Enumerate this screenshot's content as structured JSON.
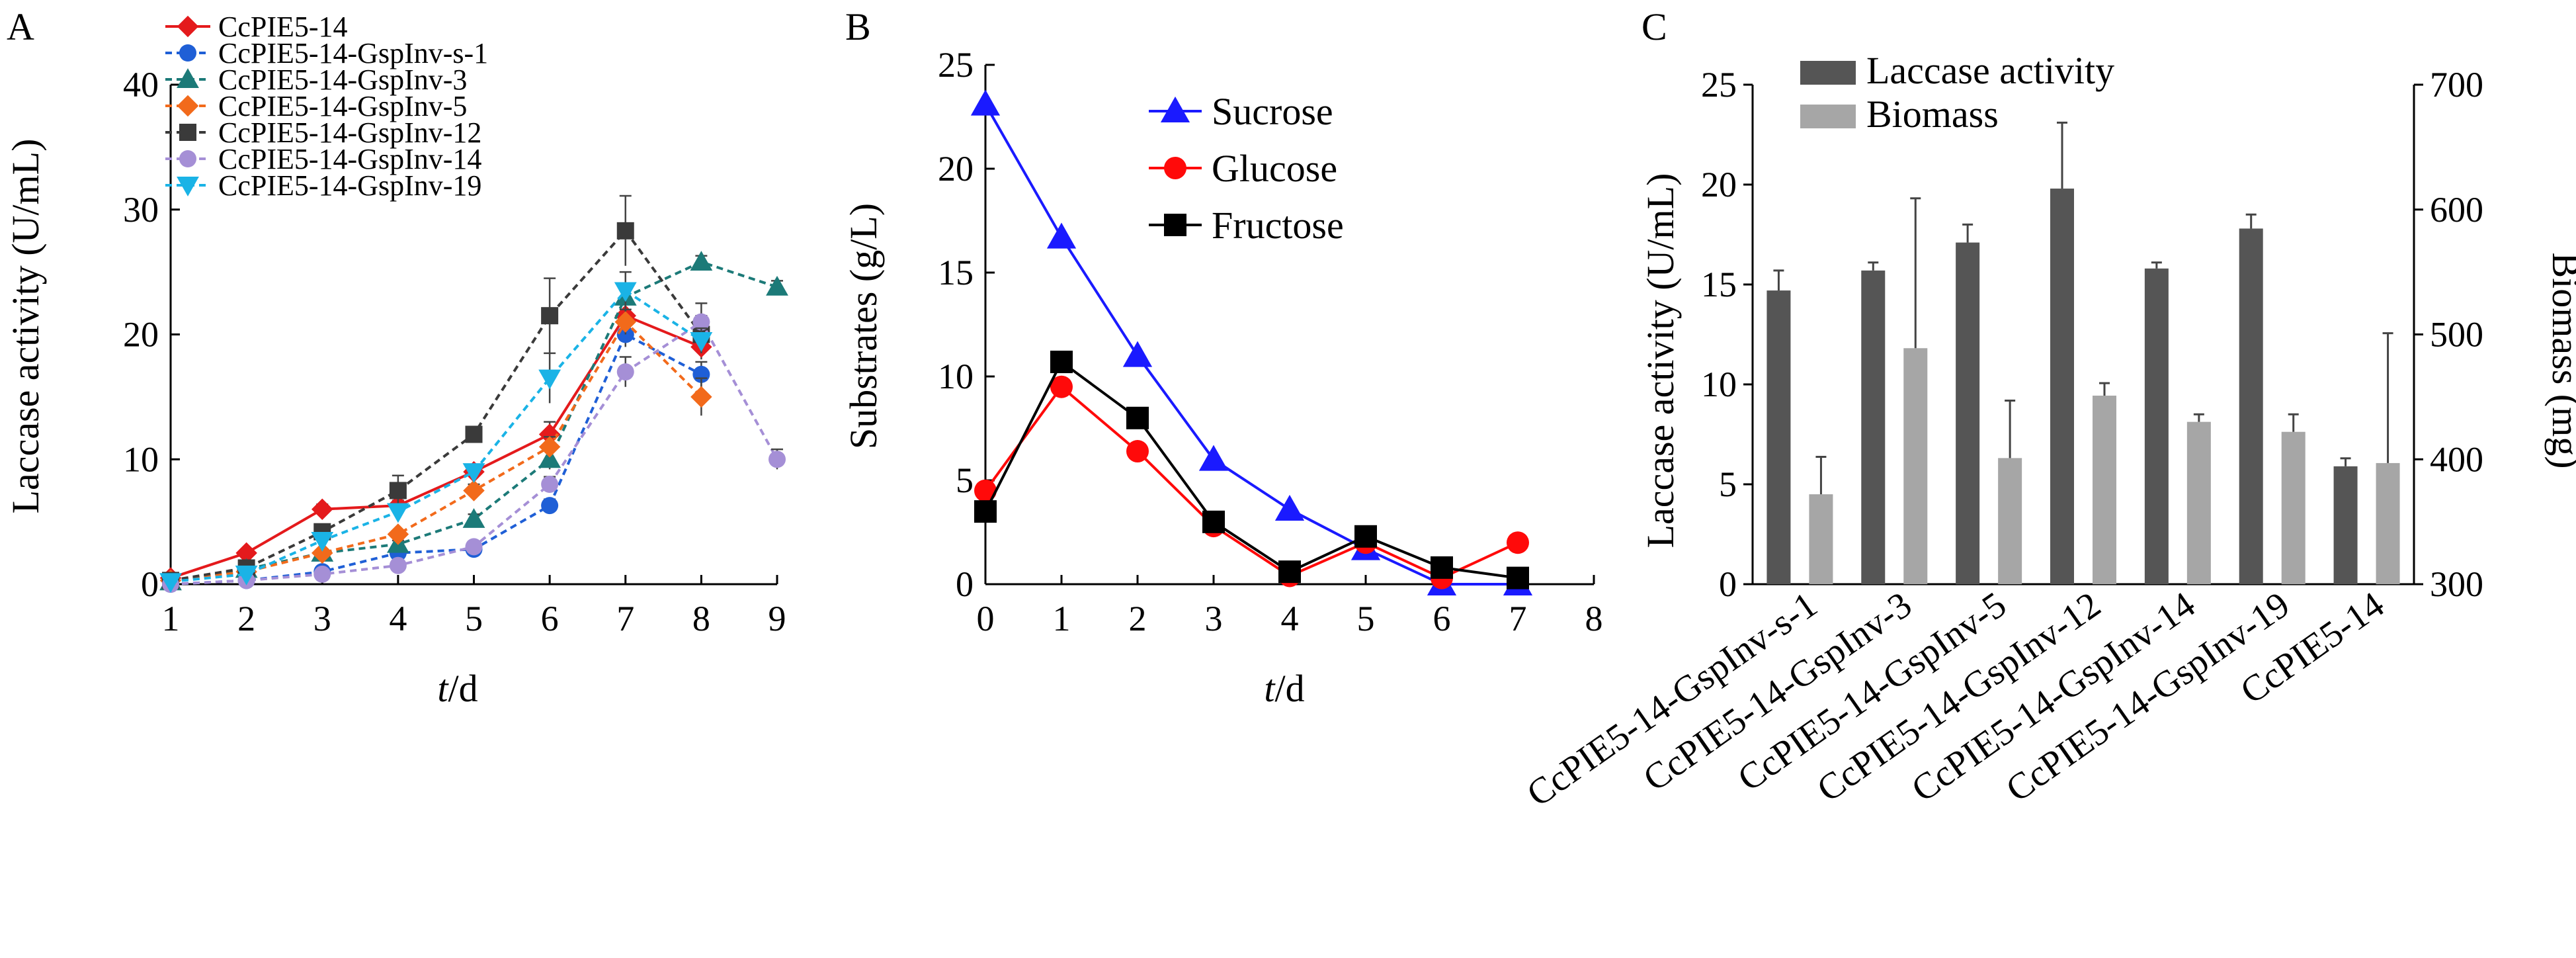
{
  "figure": {
    "panels": [
      "A",
      "B",
      "C"
    ]
  },
  "chart_data": [
    {
      "panel": "A",
      "type": "line",
      "xlabel_italic": "t",
      "xlabel_rest": "/d",
      "ylabel": "Laccase activity (U/mL)",
      "xlim": [
        1,
        9
      ],
      "ylim": [
        0,
        40
      ],
      "xticks": [
        "1",
        "2",
        "3",
        "4",
        "5",
        "6",
        "7",
        "8",
        "9"
      ],
      "yticks": [
        "0",
        "10",
        "20",
        "30",
        "40"
      ],
      "legend_position": "top-left",
      "series": [
        {
          "name": "CcPIE5-14",
          "color": "#e41a1c",
          "marker": "diamond",
          "dash": false,
          "x": [
            1,
            2,
            3,
            4,
            5,
            6,
            7,
            8
          ],
          "y": [
            0.5,
            2.5,
            6,
            6.3,
            9,
            12,
            21.5,
            19
          ],
          "err": [
            0.3,
            0.3,
            0.4,
            0.4,
            0.5,
            1,
            1.5,
            1
          ]
        },
        {
          "name": "CcPIE5-14-GspInv-s-1",
          "color": "#1f5fd6",
          "marker": "circle",
          "dash": true,
          "x": [
            1,
            2,
            3,
            4,
            5,
            6,
            7,
            8
          ],
          "y": [
            0,
            0.3,
            1,
            2.5,
            2.8,
            6.3,
            20,
            16.8
          ],
          "err": [
            0.2,
            0.2,
            0.3,
            0.3,
            0.3,
            0.5,
            1,
            1
          ]
        },
        {
          "name": "CcPIE5-14-GspInv-3",
          "color": "#1c7a78",
          "marker": "triangle-up",
          "dash": true,
          "x": [
            1,
            2,
            3,
            4,
            5,
            6,
            7,
            8,
            9
          ],
          "y": [
            0.2,
            1.2,
            2.5,
            3.2,
            5.2,
            10,
            23,
            25.8,
            23.8
          ],
          "err": [
            0.2,
            0.2,
            0.3,
            0.3,
            0.4,
            0.8,
            1,
            0.5,
            0.5
          ]
        },
        {
          "name": "CcPIE5-14-GspInv-5",
          "color": "#f26a1b",
          "marker": "diamond",
          "dash": true,
          "x": [
            1,
            2,
            3,
            4,
            5,
            6,
            7,
            8
          ],
          "y": [
            0.3,
            1,
            2.5,
            4,
            7.5,
            11,
            21,
            15
          ],
          "err": [
            0.2,
            0.2,
            0.3,
            0.3,
            0.5,
            0.8,
            1,
            1.5
          ]
        },
        {
          "name": "CcPIE5-14-GspInv-12",
          "color": "#3a3a3a",
          "marker": "square",
          "dash": true,
          "x": [
            1,
            2,
            3,
            4,
            5,
            6,
            7,
            8
          ],
          "y": [
            0.3,
            1.3,
            4.2,
            7.5,
            12,
            21.5,
            28.3,
            20
          ],
          "err": [
            0.2,
            0.3,
            0.4,
            1.2,
            0.5,
            3,
            2.8,
            1.5
          ]
        },
        {
          "name": "CcPIE5-14-GspInv-14",
          "color": "#a58fd6",
          "marker": "circle",
          "dash": true,
          "x": [
            1,
            2,
            3,
            4,
            5,
            6,
            7,
            8,
            9
          ],
          "y": [
            0,
            0.3,
            0.8,
            1.5,
            3,
            8,
            17,
            21,
            10
          ],
          "err": [
            0.2,
            0.2,
            0.2,
            0.3,
            0.3,
            0.6,
            1.2,
            1.5,
            0.8
          ]
        },
        {
          "name": "CcPIE5-14-GspInv-19",
          "color": "#1ab3e6",
          "marker": "triangle-down",
          "dash": true,
          "x": [
            1,
            2,
            3,
            4,
            5,
            6,
            7,
            8
          ],
          "y": [
            0.2,
            0.8,
            3.5,
            5.8,
            9,
            16.5,
            23.5,
            19.5
          ],
          "err": [
            0.2,
            0.2,
            0.4,
            0.5,
            0.6,
            2,
            1.5,
            1
          ]
        }
      ]
    },
    {
      "panel": "B",
      "type": "line",
      "xlabel_italic": "t",
      "xlabel_rest": "/d",
      "ylabel": "Substrates (g/L)",
      "xlim": [
        0,
        8
      ],
      "ylim": [
        0,
        25
      ],
      "xticks": [
        "0",
        "1",
        "2",
        "3",
        "4",
        "5",
        "6",
        "7",
        "8"
      ],
      "yticks": [
        "0",
        "5",
        "10",
        "15",
        "20",
        "25"
      ],
      "legend_position": "top-right",
      "series": [
        {
          "name": "Sucrose",
          "color": "#1a1aff",
          "marker": "triangle-up",
          "x": [
            0,
            1,
            2,
            3,
            4,
            5,
            6,
            7
          ],
          "y": [
            23.1,
            16.7,
            11,
            6,
            3.6,
            1.7,
            0,
            0
          ]
        },
        {
          "name": "Glucose",
          "color": "#ff0a0a",
          "marker": "circle",
          "x": [
            0,
            1,
            2,
            3,
            4,
            5,
            6,
            7
          ],
          "y": [
            4.5,
            9.5,
            6.4,
            2.8,
            0.4,
            2,
            0.3,
            2
          ]
        },
        {
          "name": "Fructose",
          "color": "#000000",
          "marker": "square",
          "x": [
            0,
            1,
            2,
            3,
            4,
            5,
            6,
            7
          ],
          "y": [
            3.5,
            10.7,
            8,
            3,
            0.6,
            2.3,
            0.8,
            0.3
          ]
        }
      ]
    },
    {
      "panel": "C",
      "type": "bar",
      "ylabel": "Laccase activity (U/mL)",
      "y2label": "Biomass (mg)",
      "ylim": [
        0,
        25
      ],
      "y2lim": [
        300,
        700
      ],
      "yticks": [
        "0",
        "5",
        "10",
        "15",
        "20",
        "25"
      ],
      "y2ticks": [
        "300",
        "400",
        "500",
        "600",
        "700"
      ],
      "legend_position": "top-left",
      "categories": [
        "CcPIE5-14-GspInv-s-1",
        "CcPIE5-14-GspInv-3",
        "CcPIE5-14-GspInv-5",
        "CcPIE5-14-GspInv-12",
        "CcPIE5-14-GspInv-14",
        "CcPIE5-14-GspInv-19",
        "CcPIE5-14"
      ],
      "series": [
        {
          "name": "Laccase activity",
          "color": "#555555",
          "axis": "left",
          "values": [
            14.7,
            15.7,
            17.1,
            19.8,
            15.8,
            17.8,
            5.9
          ],
          "err": [
            1,
            0.4,
            0.9,
            3.3,
            0.3,
            0.7,
            0.4
          ]
        },
        {
          "name": "Biomass",
          "color": "#a6a6a6",
          "axis": "right",
          "values": [
            372,
            489,
            401,
            451,
            430,
            422,
            397
          ],
          "err": [
            30,
            120,
            46,
            10,
            6,
            14,
            104
          ]
        }
      ]
    }
  ]
}
